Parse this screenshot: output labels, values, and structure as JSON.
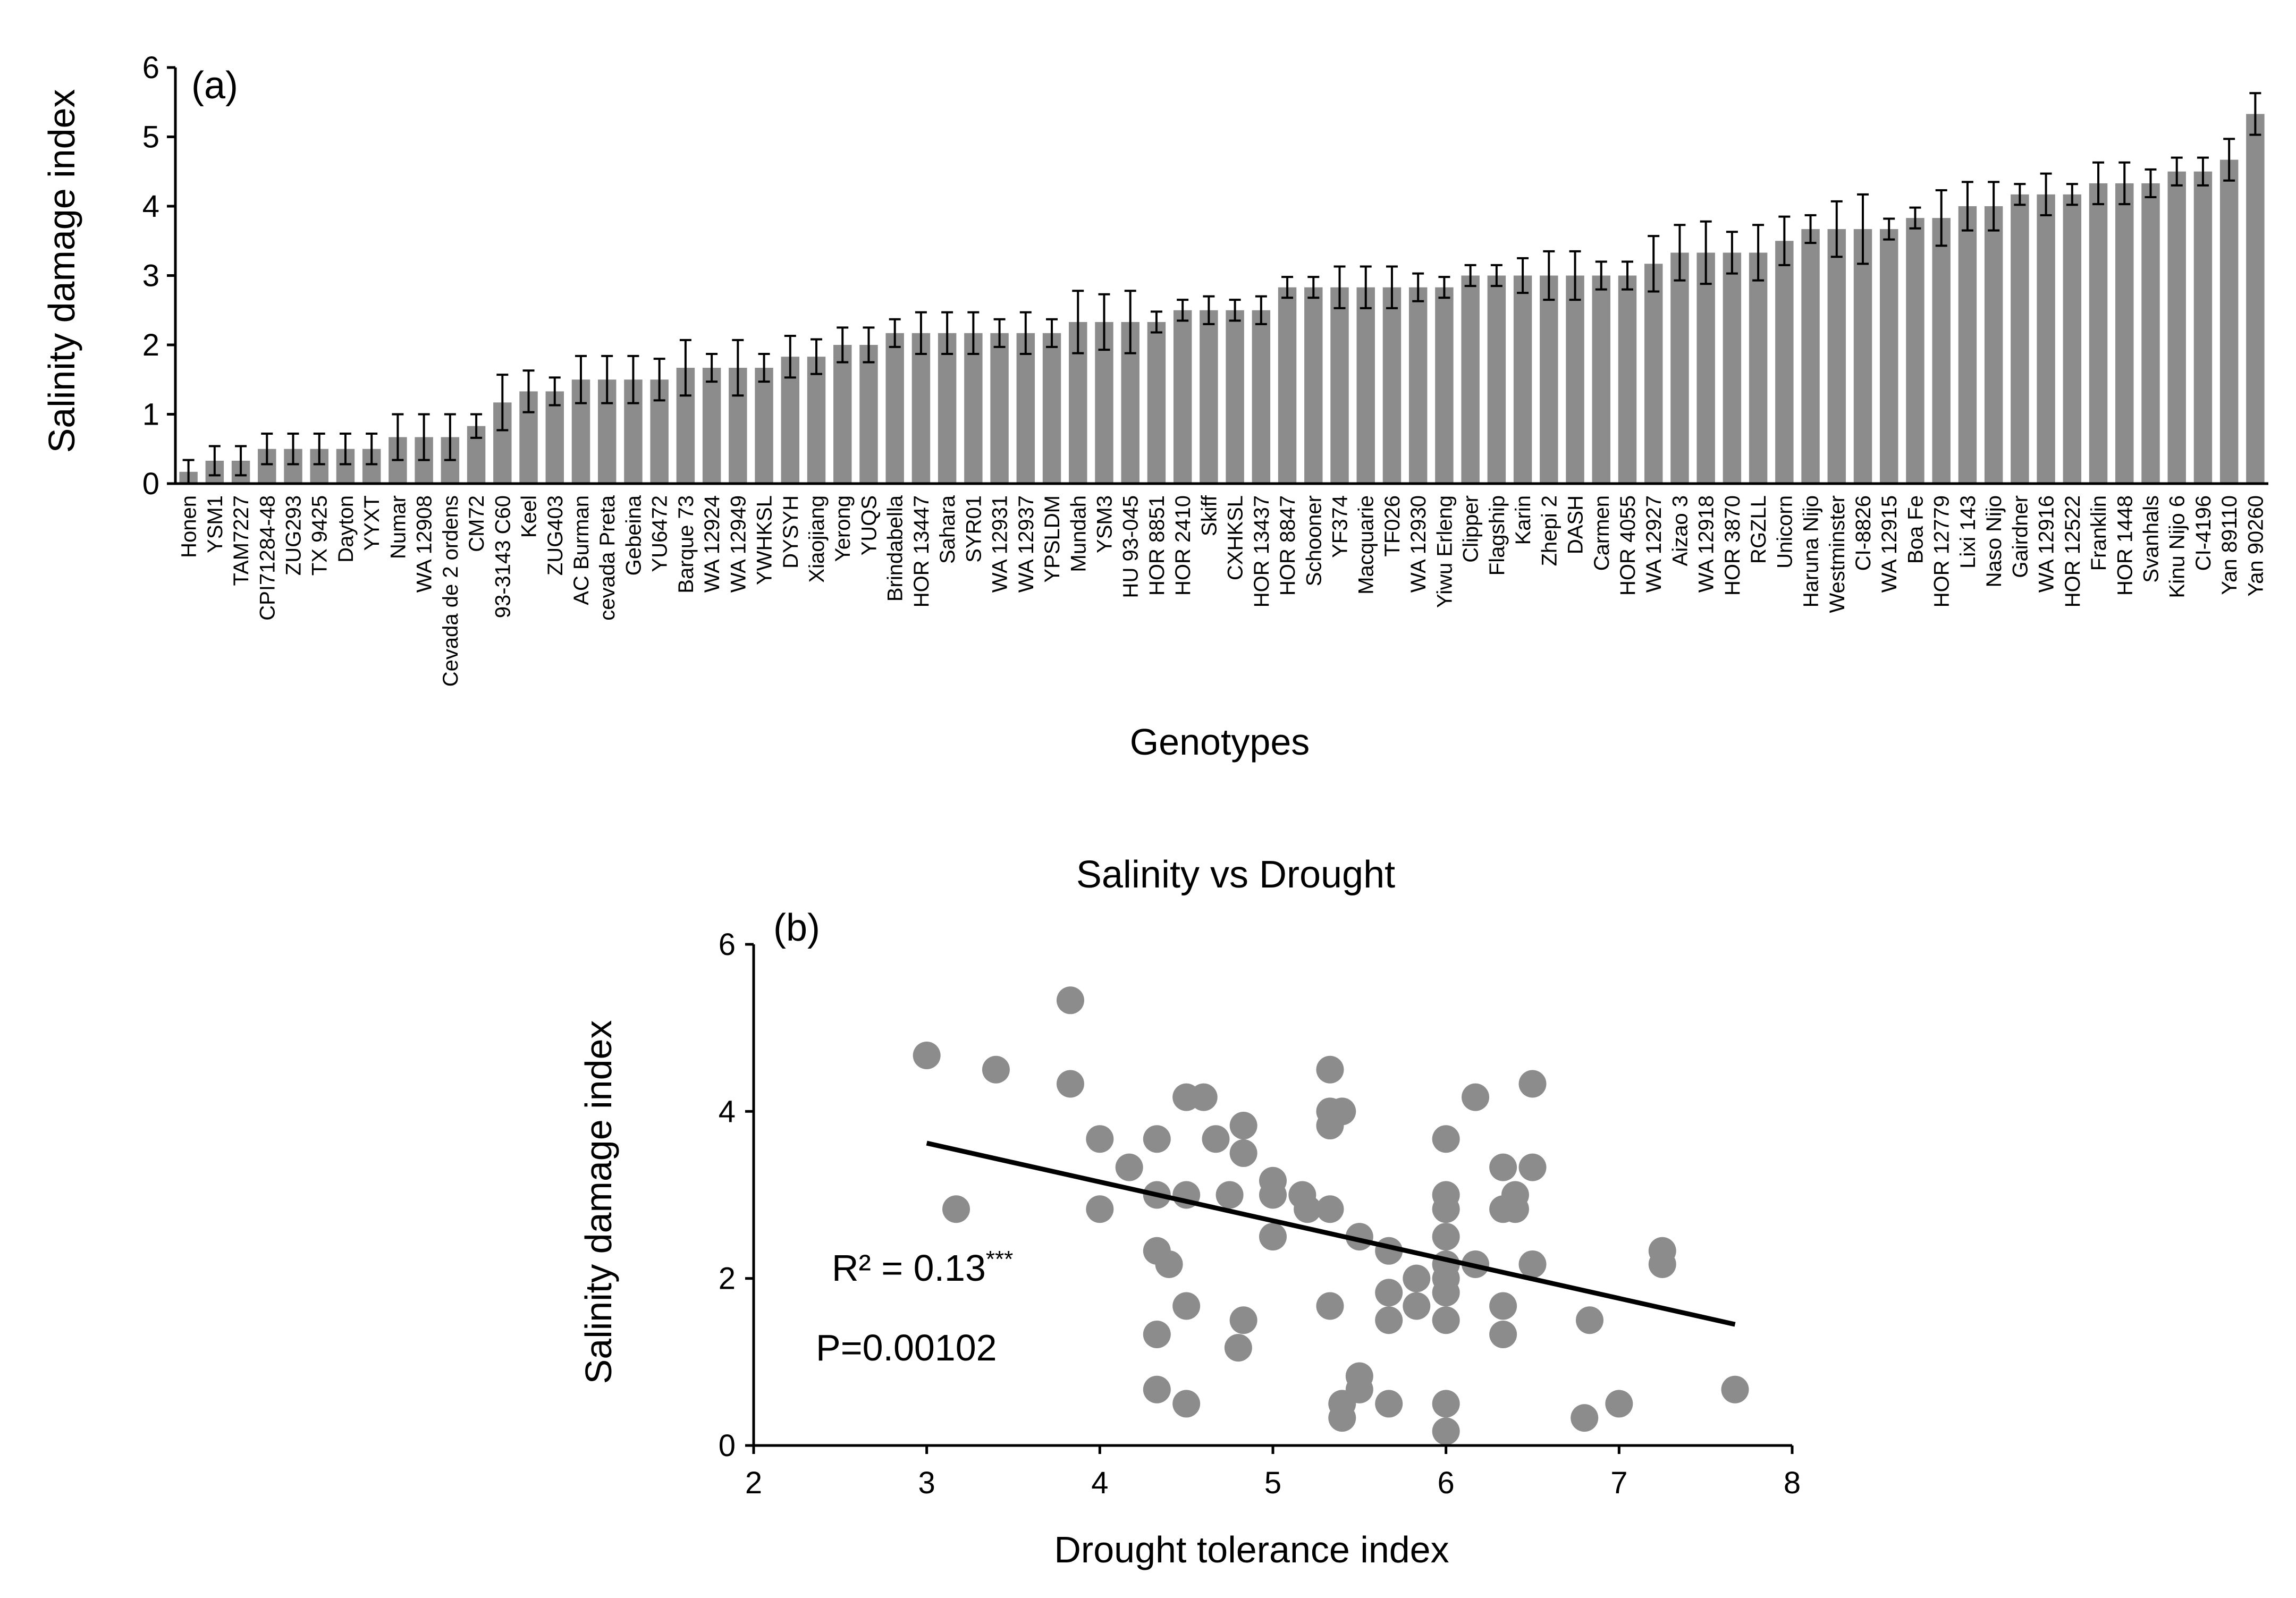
{
  "chart_data": [
    {
      "type": "bar",
      "panel_label": "(a)",
      "xlabel": "Genotypes",
      "ylabel": "Salinity damage index",
      "ylim": [
        0,
        6
      ],
      "yticks": [
        "0",
        "1",
        "2",
        "3",
        "4",
        "5",
        "6"
      ],
      "categories": [
        "Honen",
        "YSM1",
        "TAM7227",
        "CPI71284-48",
        "ZUG293",
        "TX 9425",
        "Dayton",
        "YYXT",
        "Numar",
        "WA 12908",
        "Cevada de 2 ordens",
        "CM72",
        "93-3143 C60",
        "Keel",
        "ZUG403",
        "AC Burman",
        "cevada Preta",
        "Gebeina",
        "YU6472",
        "Barque 73",
        "WA 12924",
        "WA 12949",
        "YWHKSL",
        "DYSYH",
        "Xiaojiang",
        "Yerong",
        "YUQS",
        "Brindabella",
        "HOR 13447",
        "Sahara",
        "SYR01",
        "WA 12931",
        "WA 12937",
        "YPSLDM",
        "Mundah",
        "YSM3",
        "HU 93-045",
        "HOR 8851",
        "HOR 2410",
        "Skiff",
        "CXHKSL",
        "HOR 13437",
        "HOR 8847",
        "Schooner",
        "YF374",
        "Macquarie",
        "TF026",
        "WA 12930",
        "Yiwu Erleng",
        "Clipper",
        "Flagship",
        "Karin",
        "Zhepi 2",
        "DASH",
        "Carmen",
        "HOR 4055",
        "WA 12927",
        "Aizao 3",
        "WA 12918",
        "HOR 3870",
        "RGZLL",
        "Unicorn",
        "Haruna Nijo",
        "Westminster",
        "CI-8826",
        "WA 12915",
        "Boa Fe",
        "HOR 12779",
        "Lixi 143",
        "Naso Nijo",
        "Gairdner",
        "WA 12916",
        "HOR 12522",
        "Franklin",
        "HOR 1448",
        "Svanhals",
        "Kinu Nijo 6",
        "CI-4196",
        "Yan 89110",
        "Yan 90260"
      ],
      "values": [
        0.17,
        0.33,
        0.33,
        0.5,
        0.5,
        0.5,
        0.5,
        0.5,
        0.67,
        0.67,
        0.67,
        0.83,
        1.17,
        1.33,
        1.33,
        1.5,
        1.5,
        1.5,
        1.5,
        1.67,
        1.67,
        1.67,
        1.67,
        1.83,
        1.83,
        2.0,
        2.0,
        2.17,
        2.17,
        2.17,
        2.17,
        2.17,
        2.17,
        2.17,
        2.33,
        2.33,
        2.33,
        2.33,
        2.5,
        2.5,
        2.5,
        2.5,
        2.83,
        2.83,
        2.83,
        2.83,
        2.83,
        2.83,
        2.83,
        3.0,
        3.0,
        3.0,
        3.0,
        3.0,
        3.0,
        3.0,
        3.17,
        3.33,
        3.33,
        3.33,
        3.33,
        3.5,
        3.67,
        3.67,
        3.67,
        3.67,
        3.83,
        3.83,
        4.0,
        4.0,
        4.17,
        4.17,
        4.17,
        4.33,
        4.33,
        4.33,
        4.5,
        4.5,
        4.67,
        5.33
      ],
      "errors": [
        0.17,
        0.21,
        0.21,
        0.22,
        0.22,
        0.22,
        0.22,
        0.22,
        0.33,
        0.33,
        0.33,
        0.17,
        0.4,
        0.3,
        0.2,
        0.34,
        0.34,
        0.34,
        0.3,
        0.4,
        0.2,
        0.4,
        0.2,
        0.3,
        0.25,
        0.25,
        0.25,
        0.2,
        0.3,
        0.3,
        0.3,
        0.2,
        0.3,
        0.2,
        0.45,
        0.4,
        0.45,
        0.15,
        0.15,
        0.2,
        0.15,
        0.2,
        0.15,
        0.15,
        0.3,
        0.3,
        0.3,
        0.2,
        0.15,
        0.15,
        0.15,
        0.25,
        0.35,
        0.35,
        0.2,
        0.2,
        0.4,
        0.4,
        0.45,
        0.3,
        0.4,
        0.35,
        0.2,
        0.4,
        0.5,
        0.15,
        0.15,
        0.4,
        0.35,
        0.35,
        0.15,
        0.3,
        0.15,
        0.3,
        0.3,
        0.2,
        0.2,
        0.2,
        0.3,
        0.3
      ]
    },
    {
      "type": "scatter",
      "title": "Salinity vs Drought",
      "panel_label": "(b)",
      "xlabel": "Drought tolerance index",
      "ylabel": "Salinity damage index",
      "xlim": [
        2,
        8
      ],
      "ylim": [
        0,
        6
      ],
      "xticks": [
        "2",
        "3",
        "4",
        "5",
        "6",
        "7",
        "8"
      ],
      "yticks": [
        "0",
        "2",
        "4",
        "6"
      ],
      "points": [
        [
          3.0,
          4.67
        ],
        [
          3.17,
          2.83
        ],
        [
          3.4,
          4.5
        ],
        [
          3.83,
          5.33
        ],
        [
          3.83,
          4.33
        ],
        [
          4.0,
          3.67
        ],
        [
          4.0,
          2.83
        ],
        [
          4.17,
          3.33
        ],
        [
          4.33,
          3.67
        ],
        [
          4.33,
          3.0
        ],
        [
          4.33,
          2.33
        ],
        [
          4.4,
          2.17
        ],
        [
          4.33,
          1.33
        ],
        [
          4.33,
          0.67
        ],
        [
          4.5,
          4.17
        ],
        [
          4.5,
          3.0
        ],
        [
          4.5,
          1.67
        ],
        [
          4.5,
          0.5
        ],
        [
          4.6,
          4.17
        ],
        [
          4.67,
          3.67
        ],
        [
          4.75,
          3.0
        ],
        [
          4.83,
          3.83
        ],
        [
          4.83,
          3.5
        ],
        [
          4.83,
          1.5
        ],
        [
          4.8,
          1.17
        ],
        [
          5.0,
          3.17
        ],
        [
          5.0,
          3.0
        ],
        [
          5.0,
          2.5
        ],
        [
          5.17,
          3.0
        ],
        [
          5.2,
          2.83
        ],
        [
          5.33,
          4.5
        ],
        [
          5.33,
          4.0
        ],
        [
          5.33,
          3.83
        ],
        [
          5.33,
          2.83
        ],
        [
          5.33,
          1.67
        ],
        [
          5.4,
          4.0
        ],
        [
          5.4,
          0.5
        ],
        [
          5.4,
          0.33
        ],
        [
          5.5,
          2.5
        ],
        [
          5.5,
          0.83
        ],
        [
          5.5,
          0.67
        ],
        [
          5.67,
          2.33
        ],
        [
          5.67,
          1.83
        ],
        [
          5.67,
          1.5
        ],
        [
          5.67,
          0.5
        ],
        [
          5.83,
          2.0
        ],
        [
          5.83,
          1.67
        ],
        [
          6.0,
          3.67
        ],
        [
          6.0,
          3.0
        ],
        [
          6.0,
          2.83
        ],
        [
          6.0,
          2.5
        ],
        [
          6.0,
          2.17
        ],
        [
          6.0,
          2.0
        ],
        [
          6.0,
          1.83
        ],
        [
          6.0,
          1.5
        ],
        [
          6.0,
          0.5
        ],
        [
          6.0,
          0.17
        ],
        [
          6.17,
          4.17
        ],
        [
          6.17,
          2.17
        ],
        [
          6.33,
          3.33
        ],
        [
          6.33,
          2.83
        ],
        [
          6.33,
          1.67
        ],
        [
          6.33,
          1.33
        ],
        [
          6.4,
          3.0
        ],
        [
          6.4,
          2.83
        ],
        [
          6.5,
          4.33
        ],
        [
          6.5,
          3.33
        ],
        [
          6.5,
          2.17
        ],
        [
          6.8,
          0.33
        ],
        [
          6.83,
          1.5
        ],
        [
          7.0,
          0.5
        ],
        [
          7.25,
          2.33
        ],
        [
          7.25,
          2.17
        ],
        [
          7.67,
          0.67
        ]
      ],
      "trendline": {
        "x": [
          3.0,
          7.67
        ],
        "y": [
          3.62,
          1.45
        ]
      },
      "annotations": {
        "r2_text": "R² = 0.13",
        "r2_sup": "***",
        "p_text": "P=0.00102"
      }
    }
  ]
}
